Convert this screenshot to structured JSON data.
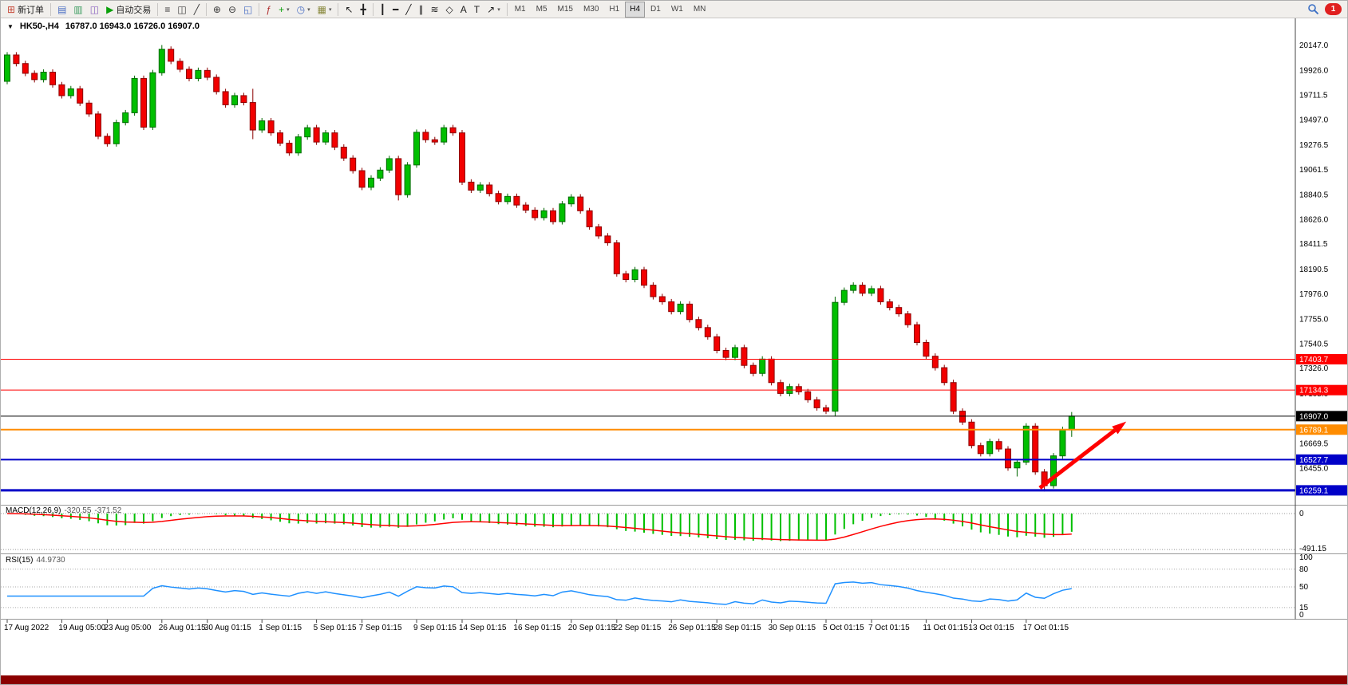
{
  "toolbar": {
    "new_order_label": "新订单",
    "auto_trading_label": "自动交易",
    "notification_count": "1",
    "active_timeframe": "H4",
    "timeframes": [
      "M1",
      "M5",
      "M15",
      "M30",
      "H1",
      "H4",
      "D1",
      "W1",
      "MN"
    ],
    "items": [
      {
        "name": "new-order-button",
        "icon": "new-order-icon",
        "glyph": "⊞",
        "glyph_color": "#c84a3a",
        "label": "新订单"
      },
      {
        "sep": true
      },
      {
        "name": "charts-window-icon",
        "glyph": "▤",
        "glyph_color": "#4a6ec4"
      },
      {
        "name": "profiles-icon",
        "glyph": "▥",
        "glyph_color": "#3f9e63"
      },
      {
        "name": "data-window-icon",
        "glyph": "◫",
        "glyph_color": "#8a62c0"
      },
      {
        "name": "auto-trading-button",
        "icon": "autotrade-icon",
        "glyph": "▶",
        "glyph_color": "#0aa00a",
        "label": "自动交易"
      },
      {
        "sep": true
      },
      {
        "name": "bar-chart-icon",
        "glyph": "≡",
        "glyph_color": "#3a3a3a"
      },
      {
        "name": "candlestick-chart-icon",
        "glyph": "◫",
        "glyph_color": "#3a3a3a"
      },
      {
        "name": "line-chart-icon",
        "glyph": "╱",
        "glyph_color": "#3a3a3a"
      },
      {
        "sep": true
      },
      {
        "name": "zoom-in-icon",
        "glyph": "⊕",
        "glyph_color": "#3a3a3a"
      },
      {
        "name": "zoom-out-icon",
        "glyph": "⊖",
        "glyph_color": "#3a3a3a"
      },
      {
        "name": "tile-windows-icon",
        "glyph": "◱",
        "glyph_color": "#4a6ec4"
      },
      {
        "sep": true
      },
      {
        "name": "indicators-icon",
        "glyph": "ƒ",
        "glyph_color": "#b03030"
      },
      {
        "name": "add-indicator-icon",
        "glyph": "+",
        "glyph_color": "#0aa00a",
        "dd": true
      },
      {
        "name": "periods-icon",
        "glyph": "◷",
        "glyph_color": "#4a6ec4",
        "dd": true
      },
      {
        "name": "templates-icon",
        "glyph": "▦",
        "glyph_color": "#8a8a40",
        "dd": true
      },
      {
        "sep": true
      },
      {
        "name": "cursor-icon",
        "glyph": "↖",
        "glyph_color": "#202020"
      },
      {
        "name": "crosshair-icon",
        "glyph": "╋",
        "glyph_color": "#202020"
      },
      {
        "sep": true
      },
      {
        "name": "vertical-line-icon",
        "glyph": "┃",
        "glyph_color": "#202020"
      },
      {
        "name": "horizontal-line-icon",
        "glyph": "━",
        "glyph_color": "#202020"
      },
      {
        "name": "trendline-icon",
        "glyph": "╱",
        "glyph_color": "#202020"
      },
      {
        "name": "channel-icon",
        "glyph": "∥",
        "glyph_color": "#202020"
      },
      {
        "name": "fibonacci-icon",
        "glyph": "≋",
        "glyph_color": "#202020"
      },
      {
        "name": "shapes-icon",
        "glyph": "◇",
        "glyph_color": "#202020"
      },
      {
        "name": "text-icon",
        "glyph": "A",
        "glyph_color": "#202020"
      },
      {
        "name": "text-label-icon",
        "glyph": "T",
        "glyph_color": "#202020"
      },
      {
        "name": "arrows-tool-icon",
        "glyph": "↗",
        "glyph_color": "#202020",
        "dd": true
      },
      {
        "sep": true
      }
    ]
  },
  "chart": {
    "collapse_glyph": "▼",
    "symbol_title": "HK50-,H4",
    "ohlc_text": "16787.0 16943.0 16726.0 16907.0",
    "macd": {
      "label": "MACD(12,26,9)",
      "value_main": "-320.55",
      "value_signal": "-371.52",
      "axis_top": "0",
      "axis_bottom": "-491.15"
    },
    "rsi": {
      "label": "RSI(15)",
      "value": "44.9730",
      "axis_labels": [
        "100",
        "80",
        "50",
        "15",
        "0"
      ],
      "axis_values": [
        100,
        80,
        50,
        15,
        0
      ],
      "levels": [
        80,
        50,
        15
      ]
    }
  },
  "chart_data": {
    "type": "candlestick",
    "symbol": "HK50-",
    "timeframe": "H4",
    "last_ohlc": {
      "open": 16787.0,
      "high": 16943.0,
      "low": 16726.0,
      "close": 16907.0
    },
    "up_color": "#00bf00",
    "up_border": "#006a00",
    "down_color": "#f20000",
    "down_border": "#8b0000",
    "price_axis_ticks": [
      20147.0,
      19926.0,
      19711.5,
      19497.0,
      19276.5,
      19061.5,
      18840.5,
      18626.0,
      18411.5,
      18190.5,
      17976.0,
      17755.0,
      17540.5,
      17326.0,
      17105.0,
      16890.5,
      16669.5,
      16455.0,
      16240.5
    ],
    "price_range": {
      "max": 20366,
      "min": 16140
    },
    "time_labels": [
      {
        "i": 0,
        "t": "17 Aug 2022"
      },
      {
        "i": 6,
        "t": "19 Aug 05:00"
      },
      {
        "i": 11,
        "t": "23 Aug 05:00"
      },
      {
        "i": 17,
        "t": "26 Aug 01:15"
      },
      {
        "i": 22,
        "t": "30 Aug 01:15"
      },
      {
        "i": 28,
        "t": "1 Sep 01:15"
      },
      {
        "i": 34,
        "t": "5 Sep 01:15"
      },
      {
        "i": 39,
        "t": "7 Sep 01:15"
      },
      {
        "i": 45,
        "t": "9 Sep 01:15"
      },
      {
        "i": 50,
        "t": "14 Sep 01:15"
      },
      {
        "i": 56,
        "t": "16 Sep 01:15"
      },
      {
        "i": 62,
        "t": "20 Sep 01:15"
      },
      {
        "i": 67,
        "t": "22 Sep 01:15"
      },
      {
        "i": 73,
        "t": "26 Sep 01:15"
      },
      {
        "i": 78,
        "t": "28 Sep 01:15"
      },
      {
        "i": 84,
        "t": "30 Sep 01:15"
      },
      {
        "i": 90,
        "t": "5 Oct 01:15"
      },
      {
        "i": 95,
        "t": "7 Oct 01:15"
      },
      {
        "i": 101,
        "t": "11 Oct 01:15"
      },
      {
        "i": 106,
        "t": "13 Oct 01:15"
      },
      {
        "i": 112,
        "t": "17 Oct 01:15"
      }
    ],
    "horizontal_lines": [
      {
        "price": 17403.7,
        "color": "#ff0000",
        "width": 1,
        "badge_text": "17403.7",
        "text_color": "#ffffff"
      },
      {
        "price": 17134.3,
        "color": "#ff0000",
        "width": 1,
        "badge_text": "17134.3",
        "text_color": "#ffffff"
      },
      {
        "price": 16907.0,
        "color": "#000000",
        "width": 1,
        "badge_text": "16907.0",
        "text_color": "#ffffff"
      },
      {
        "price": 16789.1,
        "color": "#ff8c00",
        "width": 2,
        "badge_text": "16789.1",
        "text_color": "#ffffff"
      },
      {
        "price": 16527.7,
        "color": "#0000c8",
        "width": 2,
        "badge_text": "16527.7",
        "text_color": "#ffffff"
      },
      {
        "price": 16259.1,
        "color": "#0000c8",
        "width": 3,
        "badge_text": "16259.1",
        "text_color": "#ffffff"
      }
    ],
    "arrow": {
      "color": "#ff0000",
      "from": {
        "index": 113.5,
        "price": 16280
      },
      "to": {
        "index": 123,
        "price": 16860
      }
    },
    "indicators": [
      {
        "name": "MACD",
        "params": [
          12,
          26,
          9
        ],
        "histogram_color": "#00c000",
        "signal_color": "#ff0000",
        "axis_min": -491.15
      },
      {
        "name": "RSI",
        "params": [
          15
        ],
        "line_color": "#1e90ff"
      }
    ],
    "candles": [
      [
        19830,
        20085,
        19805,
        20060
      ],
      [
        20060,
        20085,
        19960,
        19985
      ],
      [
        19985,
        20010,
        19875,
        19900
      ],
      [
        19900,
        19925,
        19820,
        19845
      ],
      [
        19845,
        19935,
        19820,
        19910
      ],
      [
        19910,
        19935,
        19775,
        19800
      ],
      [
        19800,
        19825,
        19680,
        19705
      ],
      [
        19705,
        19790,
        19680,
        19765
      ],
      [
        19765,
        19790,
        19615,
        19640
      ],
      [
        19640,
        19665,
        19520,
        19545
      ],
      [
        19545,
        19570,
        19325,
        19350
      ],
      [
        19350,
        19375,
        19260,
        19285
      ],
      [
        19285,
        19495,
        19260,
        19470
      ],
      [
        19470,
        19580,
        19445,
        19555
      ],
      [
        19555,
        19880,
        19530,
        19855
      ],
      [
        19855,
        19880,
        19405,
        19430
      ],
      [
        19430,
        19930,
        19405,
        19905
      ],
      [
        19905,
        20147,
        19880,
        20110
      ],
      [
        20110,
        20135,
        19980,
        20005
      ],
      [
        20005,
        20030,
        19910,
        19935
      ],
      [
        19935,
        19960,
        19830,
        19855
      ],
      [
        19855,
        19950,
        19830,
        19925
      ],
      [
        19925,
        19950,
        19840,
        19865
      ],
      [
        19865,
        19890,
        19715,
        19740
      ],
      [
        19740,
        19765,
        19600,
        19625
      ],
      [
        19625,
        19730,
        19600,
        19705
      ],
      [
        19705,
        19730,
        19620,
        19645
      ],
      [
        19645,
        19765,
        19325,
        19405
      ],
      [
        19405,
        19510,
        19380,
        19485
      ],
      [
        19485,
        19510,
        19355,
        19380
      ],
      [
        19380,
        19405,
        19265,
        19290
      ],
      [
        19290,
        19315,
        19180,
        19205
      ],
      [
        19205,
        19370,
        19180,
        19345
      ],
      [
        19345,
        19450,
        19320,
        19425
      ],
      [
        19425,
        19450,
        19275,
        19300
      ],
      [
        19300,
        19405,
        19275,
        19380
      ],
      [
        19380,
        19405,
        19230,
        19255
      ],
      [
        19255,
        19280,
        19135,
        19160
      ],
      [
        19160,
        19185,
        19025,
        19050
      ],
      [
        19050,
        19075,
        18880,
        18905
      ],
      [
        18905,
        19010,
        18880,
        18985
      ],
      [
        18985,
        19080,
        18960,
        19055
      ],
      [
        19055,
        19180,
        19030,
        19155
      ],
      [
        19155,
        19180,
        18790,
        18840
      ],
      [
        18840,
        19125,
        18815,
        19100
      ],
      [
        19100,
        19410,
        19075,
        19385
      ],
      [
        19385,
        19410,
        19295,
        19320
      ],
      [
        19320,
        19345,
        19275,
        19300
      ],
      [
        19300,
        19450,
        19275,
        19425
      ],
      [
        19425,
        19450,
        19355,
        19380
      ],
      [
        19380,
        19405,
        18925,
        18950
      ],
      [
        18950,
        18975,
        18855,
        18880
      ],
      [
        18880,
        18950,
        18855,
        18925
      ],
      [
        18925,
        18950,
        18825,
        18850
      ],
      [
        18850,
        18875,
        18755,
        18780
      ],
      [
        18780,
        18850,
        18755,
        18825
      ],
      [
        18825,
        18850,
        18725,
        18750
      ],
      [
        18750,
        18775,
        18680,
        18705
      ],
      [
        18705,
        18730,
        18615,
        18640
      ],
      [
        18640,
        18725,
        18615,
        18700
      ],
      [
        18700,
        18725,
        18580,
        18605
      ],
      [
        18605,
        18785,
        18580,
        18760
      ],
      [
        18760,
        18845,
        18735,
        18820
      ],
      [
        18820,
        18845,
        18675,
        18700
      ],
      [
        18700,
        18725,
        18535,
        18560
      ],
      [
        18560,
        18585,
        18455,
        18480
      ],
      [
        18480,
        18505,
        18395,
        18420
      ],
      [
        18420,
        18445,
        18125,
        18150
      ],
      [
        18150,
        18175,
        18075,
        18100
      ],
      [
        18100,
        18210,
        18075,
        18185
      ],
      [
        18185,
        18210,
        18025,
        18050
      ],
      [
        18050,
        18075,
        17925,
        17950
      ],
      [
        17950,
        17975,
        17880,
        17905
      ],
      [
        17905,
        17930,
        17795,
        17820
      ],
      [
        17820,
        17910,
        17795,
        17885
      ],
      [
        17885,
        17910,
        17725,
        17750
      ],
      [
        17750,
        17775,
        17655,
        17680
      ],
      [
        17680,
        17705,
        17575,
        17600
      ],
      [
        17600,
        17625,
        17455,
        17480
      ],
      [
        17480,
        17505,
        17395,
        17420
      ],
      [
        17420,
        17530,
        17395,
        17505
      ],
      [
        17505,
        17530,
        17325,
        17350
      ],
      [
        17350,
        17375,
        17255,
        17280
      ],
      [
        17280,
        17430,
        17255,
        17405
      ],
      [
        17405,
        17430,
        17175,
        17200
      ],
      [
        17200,
        17225,
        17080,
        17105
      ],
      [
        17105,
        17190,
        17080,
        17165
      ],
      [
        17165,
        17190,
        17095,
        17120
      ],
      [
        17120,
        17145,
        17025,
        17050
      ],
      [
        17050,
        17075,
        16955,
        16980
      ],
      [
        16980,
        17005,
        16925,
        16950
      ],
      [
        16950,
        17950,
        16905,
        17900
      ],
      [
        17900,
        18030,
        17875,
        18005
      ],
      [
        18005,
        18075,
        17980,
        18050
      ],
      [
        18050,
        18075,
        17955,
        17980
      ],
      [
        17980,
        18045,
        17955,
        18020
      ],
      [
        18020,
        18045,
        17880,
        17905
      ],
      [
        17905,
        17930,
        17830,
        17855
      ],
      [
        17855,
        17880,
        17775,
        17800
      ],
      [
        17800,
        17825,
        17680,
        17705
      ],
      [
        17705,
        17730,
        17525,
        17550
      ],
      [
        17550,
        17575,
        17405,
        17430
      ],
      [
        17430,
        17455,
        17305,
        17330
      ],
      [
        17330,
        17355,
        17175,
        17200
      ],
      [
        17200,
        17225,
        16925,
        16950
      ],
      [
        16950,
        16975,
        16830,
        16855
      ],
      [
        16855,
        16880,
        16625,
        16650
      ],
      [
        16650,
        16675,
        16555,
        16580
      ],
      [
        16580,
        16710,
        16555,
        16685
      ],
      [
        16685,
        16710,
        16595,
        16620
      ],
      [
        16620,
        16645,
        16430,
        16455
      ],
      [
        16455,
        16530,
        16380,
        16505
      ],
      [
        16505,
        16845,
        16480,
        16820
      ],
      [
        16820,
        16845,
        16395,
        16420
      ],
      [
        16420,
        16445,
        16250,
        16300
      ],
      [
        16300,
        16585,
        16275,
        16560
      ],
      [
        16560,
        16815,
        16535,
        16790
      ],
      [
        16787,
        16943,
        16726,
        16907
      ]
    ]
  }
}
